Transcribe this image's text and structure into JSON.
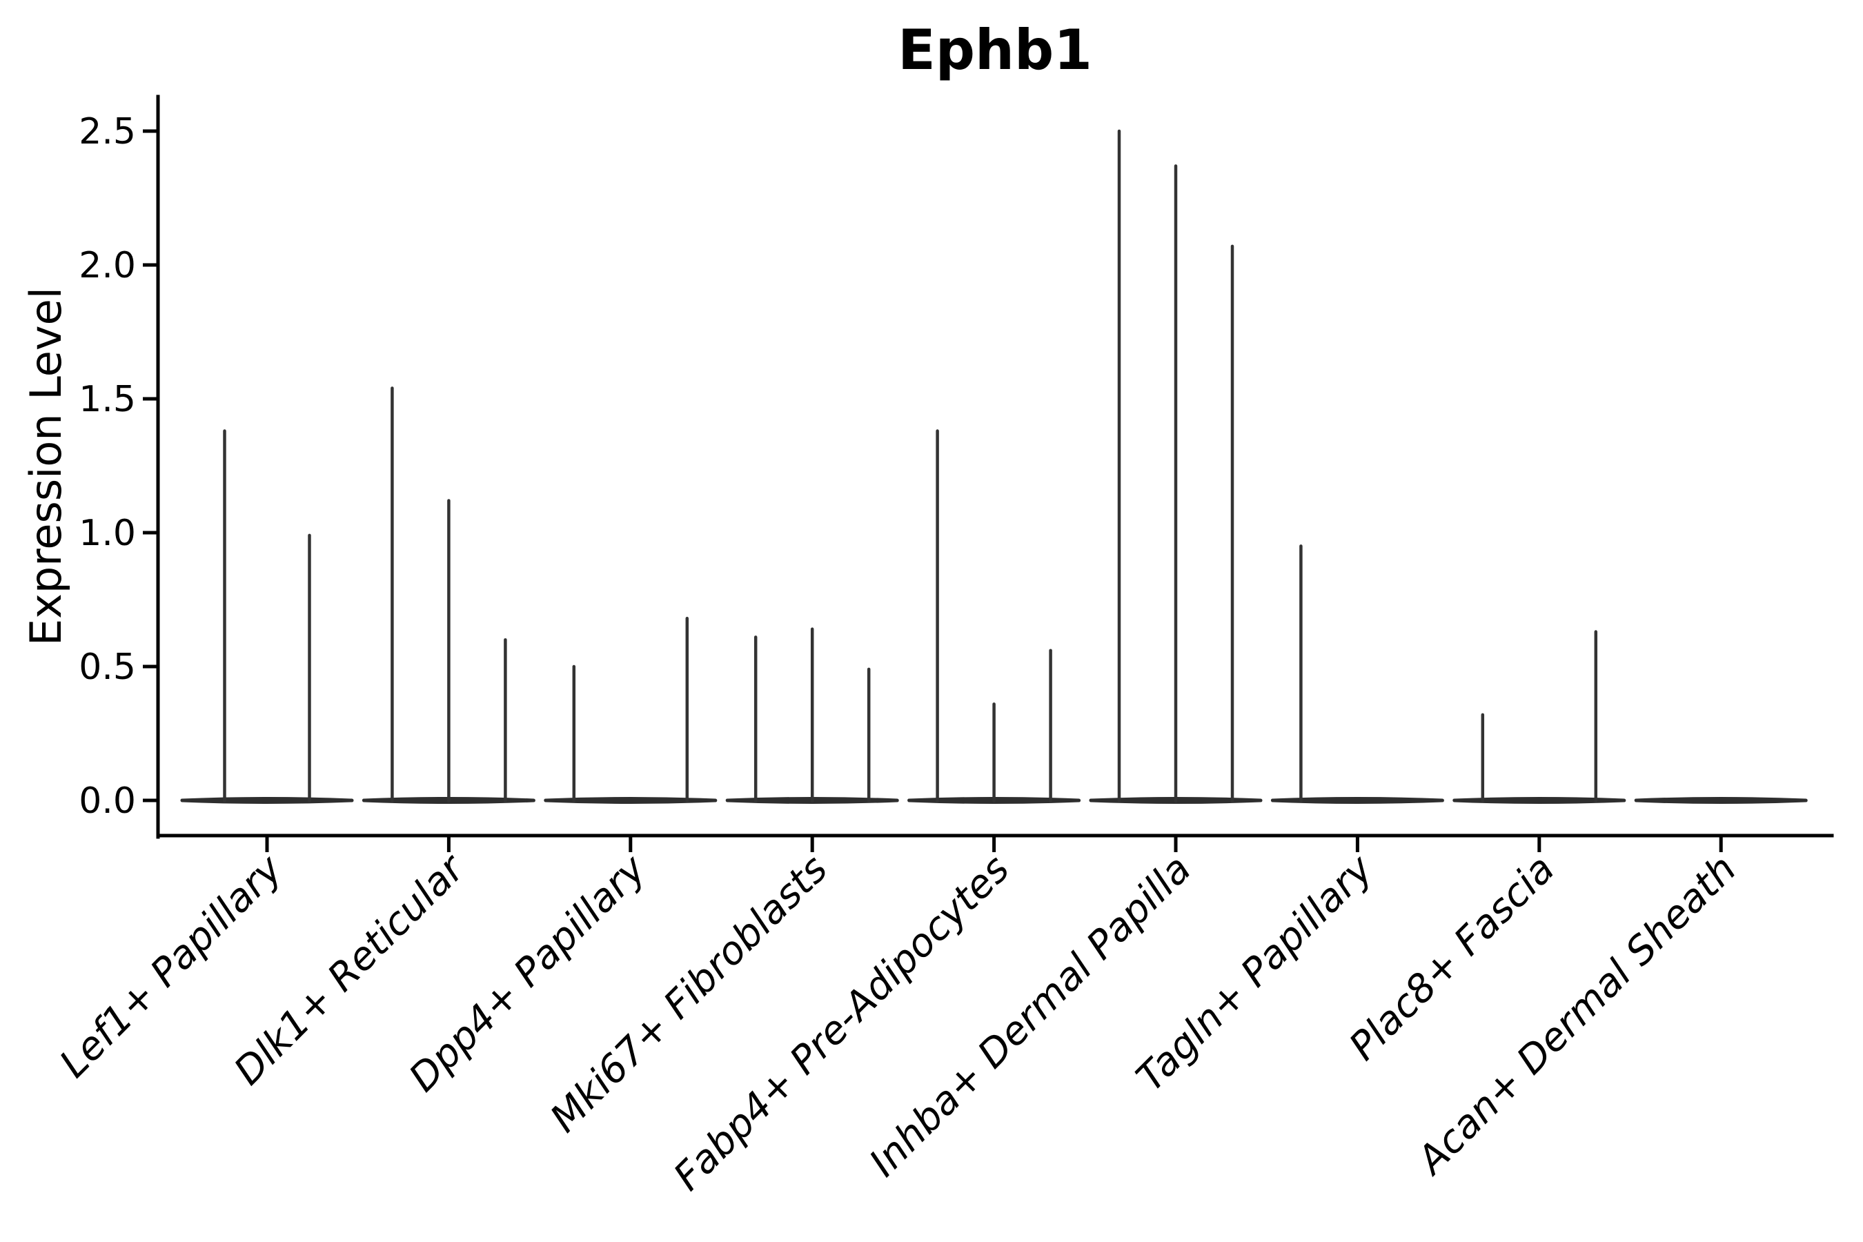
{
  "figure": {
    "title": "Ephb1",
    "ylabel": "Expression Level"
  },
  "chart_data": {
    "type": "violin",
    "title": "Ephb1",
    "xlabel": "",
    "ylabel": "Expression Level",
    "ylim": [
      0,
      2.6
    ],
    "ytick_labels": [
      "0.0",
      "0.5",
      "1.0",
      "1.5",
      "2.0",
      "2.5"
    ],
    "ytick_values": [
      0.0,
      0.5,
      1.0,
      1.5,
      2.0,
      2.5
    ],
    "grid": false,
    "legend": "none",
    "categories": [
      "Lef1+ Papillary",
      "Dlk1+ Reticular",
      "Dpp4+ Papillary",
      "Mki67+ Fibroblasts",
      "Fabp4+ Pre-Adipocytes",
      "Inhba+ Dermal Papilla",
      "Tagln+ Papillary",
      "Plac8+ Fascia",
      "Acan+ Dermal Sheath"
    ],
    "groups": [
      {
        "category": "Lef1+ Papillary",
        "violin_maxima": [
          1.38,
          0.99
        ]
      },
      {
        "category": "Dlk1+ Reticular",
        "violin_maxima": [
          1.54,
          1.12,
          0.6
        ]
      },
      {
        "category": "Dpp4+ Papillary",
        "violin_maxima": [
          0.5,
          0.0,
          0.68
        ]
      },
      {
        "category": "Mki67+ Fibroblasts",
        "violin_maxima": [
          0.61,
          0.64,
          0.49
        ]
      },
      {
        "category": "Fabp4+ Pre-Adipocytes",
        "violin_maxima": [
          1.38,
          0.36,
          0.56
        ]
      },
      {
        "category": "Inhba+ Dermal Papilla",
        "violin_maxima": [
          2.5,
          2.37,
          2.07
        ]
      },
      {
        "category": "Tagln+ Papillary",
        "violin_maxima": [
          0.95,
          0.0,
          0.0
        ]
      },
      {
        "category": "Plac8+ Fascia",
        "violin_maxima": [
          0.32,
          0.0,
          0.63
        ]
      },
      {
        "category": "Acan+ Dermal Sheath",
        "violin_maxima": [
          0.0,
          0.0,
          0.0
        ]
      }
    ],
    "colors": {
      "spike": "#333333",
      "baseline": "#2e2e2e",
      "axis": "#000000",
      "text": "#000000",
      "background": "#ffffff"
    }
  }
}
